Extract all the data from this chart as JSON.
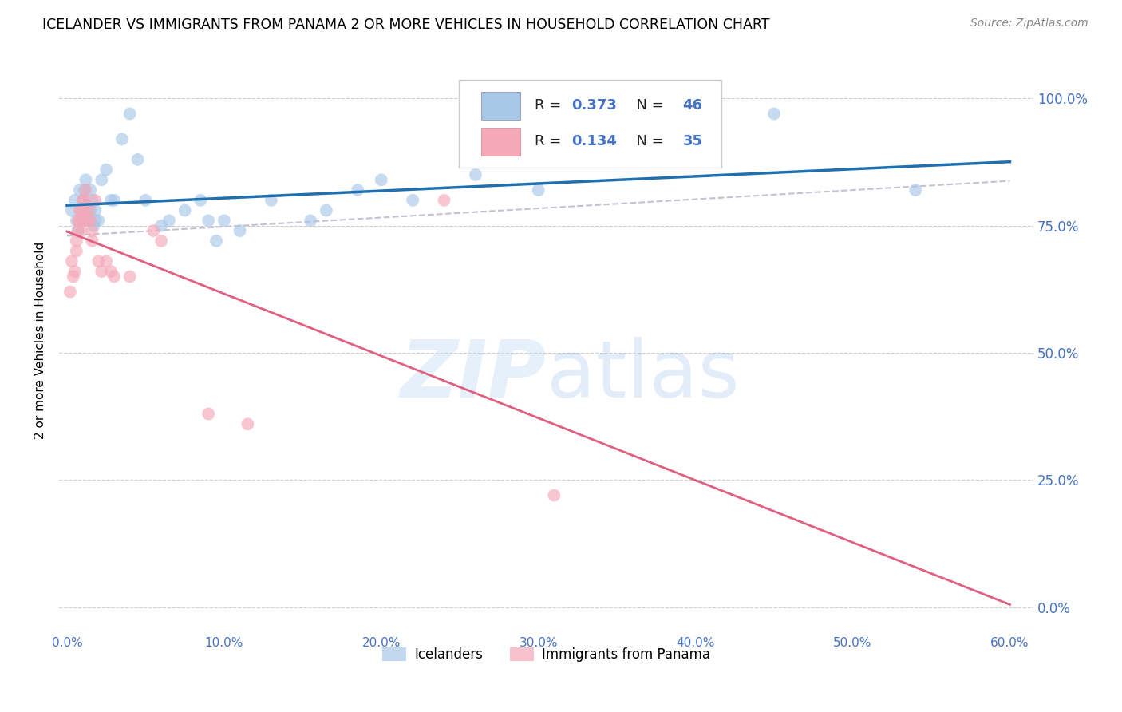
{
  "title": "ICELANDER VS IMMIGRANTS FROM PANAMA 2 OR MORE VEHICLES IN HOUSEHOLD CORRELATION CHART",
  "source": "Source: ZipAtlas.com",
  "ylabel_label": "2 or more Vehicles in Household",
  "legend_label1": "Icelanders",
  "legend_label2": "Immigrants from Panama",
  "R1": 0.373,
  "N1": 46,
  "R2": 0.134,
  "N2": 35,
  "color1": "#a8c8e8",
  "color2": "#f4a8b8",
  "line_color1": "#2070b0",
  "line_color2": "#e06080",
  "dashed_color": "#c8c0d0",
  "tick_color": "#4472c4",
  "watermark_color": "#ddeeff",
  "icelander_x": [
    0.003,
    0.005,
    0.006,
    0.007,
    0.008,
    0.009,
    0.01,
    0.01,
    0.011,
    0.012,
    0.012,
    0.013,
    0.014,
    0.015,
    0.015,
    0.016,
    0.017,
    0.018,
    0.018,
    0.02,
    0.022,
    0.025,
    0.028,
    0.03,
    0.035,
    0.04,
    0.045,
    0.05,
    0.06,
    0.065,
    0.075,
    0.085,
    0.09,
    0.095,
    0.1,
    0.11,
    0.13,
    0.155,
    0.165,
    0.185,
    0.2,
    0.22,
    0.26,
    0.3,
    0.45,
    0.54
  ],
  "icelander_y": [
    0.78,
    0.8,
    0.76,
    0.74,
    0.82,
    0.78,
    0.8,
    0.76,
    0.82,
    0.84,
    0.79,
    0.78,
    0.76,
    0.82,
    0.78,
    0.8,
    0.75,
    0.76,
    0.78,
    0.76,
    0.84,
    0.86,
    0.8,
    0.8,
    0.92,
    0.97,
    0.88,
    0.8,
    0.75,
    0.76,
    0.78,
    0.8,
    0.76,
    0.72,
    0.76,
    0.74,
    0.8,
    0.76,
    0.78,
    0.82,
    0.84,
    0.8,
    0.85,
    0.82,
    0.97,
    0.82
  ],
  "panama_x": [
    0.002,
    0.003,
    0.004,
    0.005,
    0.006,
    0.006,
    0.007,
    0.007,
    0.008,
    0.008,
    0.009,
    0.009,
    0.01,
    0.01,
    0.011,
    0.011,
    0.012,
    0.013,
    0.014,
    0.015,
    0.016,
    0.016,
    0.018,
    0.02,
    0.022,
    0.025,
    0.028,
    0.03,
    0.04,
    0.055,
    0.06,
    0.09,
    0.115,
    0.24,
    0.31
  ],
  "panama_y": [
    0.62,
    0.68,
    0.65,
    0.66,
    0.7,
    0.72,
    0.74,
    0.76,
    0.76,
    0.78,
    0.74,
    0.78,
    0.76,
    0.8,
    0.78,
    0.8,
    0.82,
    0.76,
    0.78,
    0.76,
    0.72,
    0.74,
    0.8,
    0.68,
    0.66,
    0.68,
    0.66,
    0.65,
    0.65,
    0.74,
    0.72,
    0.38,
    0.36,
    0.8,
    0.22
  ],
  "xlim": [
    0.0,
    0.6
  ],
  "ylim": [
    0.0,
    1.05
  ],
  "xticks": [
    0.0,
    0.1,
    0.2,
    0.3,
    0.4,
    0.5,
    0.6
  ],
  "yticks": [
    0.0,
    0.25,
    0.5,
    0.75,
    1.0
  ],
  "ytick_labels": [
    "0.0%",
    "25.0%",
    "50.0%",
    "75.0%",
    "100.0%"
  ],
  "xtick_labels": [
    "0.0%",
    "10.0%",
    "20.0%",
    "30.0%",
    "40.0%",
    "50.0%",
    "60.0%"
  ]
}
